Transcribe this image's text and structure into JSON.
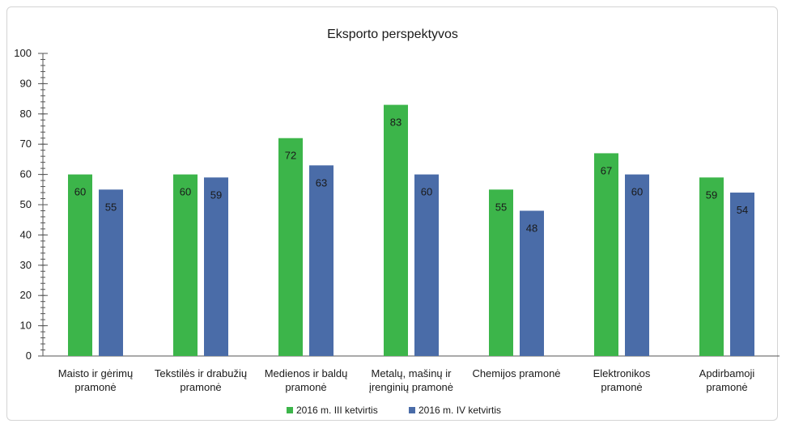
{
  "chart_data": {
    "type": "bar",
    "title": "Eksporto perspektyvos",
    "xlabel": "",
    "ylabel": "",
    "ylim": [
      0,
      100
    ],
    "yticks": [
      0,
      10,
      20,
      30,
      40,
      50,
      60,
      70,
      80,
      90,
      100
    ],
    "categories": [
      [
        "Maisto ir gėrimų",
        "pramonė"
      ],
      [
        "Tekstilės ir drabužių",
        "pramonė"
      ],
      [
        "Medienos ir baldų",
        "pramonė"
      ],
      [
        "Metalų, mašinų ir",
        "įrenginių pramonė"
      ],
      [
        "Chemijos pramonė"
      ],
      [
        "Elektronikos",
        "pramonė"
      ],
      [
        "Apdirbamoji",
        "pramonė"
      ]
    ],
    "series": [
      {
        "name": "2016 m. III ketvirtis",
        "color": "#3cb54a",
        "values": [
          60,
          60,
          72,
          83,
          55,
          67,
          59
        ]
      },
      {
        "name": "2016 m. IV ketvirtis",
        "color": "#4a6ca8",
        "values": [
          55,
          59,
          63,
          60,
          48,
          60,
          54
        ]
      }
    ],
    "legend_position": "bottom",
    "grid": false
  }
}
